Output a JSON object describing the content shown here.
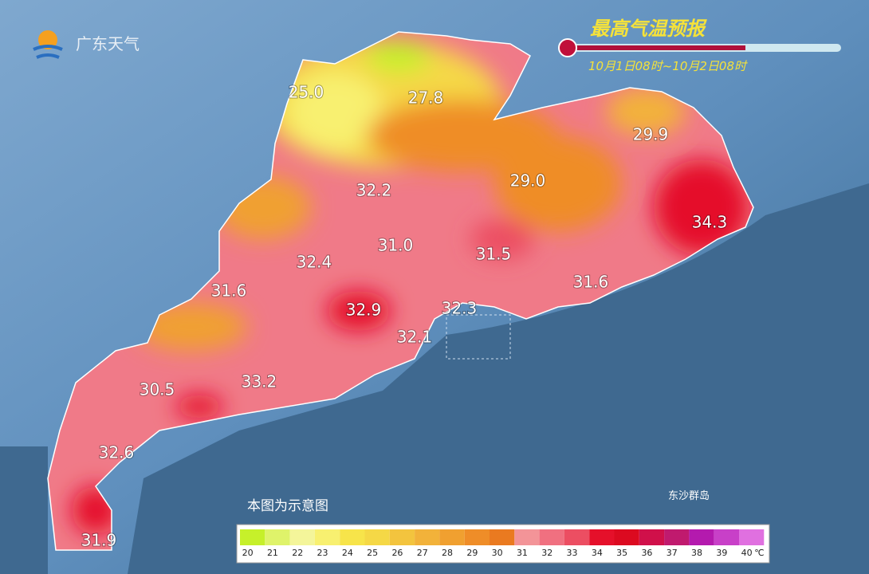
{
  "header": {
    "logo": "广东天气",
    "title": "最高气温预报",
    "subtitle": "10月1日08时~10月2日08时"
  },
  "labels": [
    "25.0",
    "27.8",
    "29.9",
    "32.2",
    "29.0",
    "34.3",
    "31.0",
    "31.5",
    "32.4",
    "31.6",
    "31.6",
    "32.9",
    "32.3",
    "32.1",
    "30.5",
    "33.2",
    "32.6",
    "31.9"
  ],
  "note": "本图为示意图",
  "island": "东沙群岛",
  "legend": {
    "unit": "℃",
    "items": [
      {
        "value": 20,
        "color": "#c6f02a"
      },
      {
        "value": 21,
        "color": "#dff36a"
      },
      {
        "value": 22,
        "color": "#f4f59a"
      },
      {
        "value": 23,
        "color": "#f8f070"
      },
      {
        "value": 24,
        "color": "#f7e44a"
      },
      {
        "value": 25,
        "color": "#f5d846"
      },
      {
        "value": 26,
        "color": "#f3c43e"
      },
      {
        "value": 27,
        "color": "#f2b23a"
      },
      {
        "value": 28,
        "color": "#f0a030"
      },
      {
        "value": 29,
        "color": "#ef8d28"
      },
      {
        "value": 30,
        "color": "#ea7a20"
      },
      {
        "value": 31,
        "color": "#f39498"
      },
      {
        "value": 32,
        "color": "#f07080"
      },
      {
        "value": 33,
        "color": "#ec4e62"
      },
      {
        "value": 34,
        "color": "#e5102a"
      },
      {
        "value": 35,
        "color": "#dc0a20"
      },
      {
        "value": 36,
        "color": "#d0104a"
      },
      {
        "value": 37,
        "color": "#c01a6e"
      },
      {
        "value": 38,
        "color": "#b41aae"
      },
      {
        "value": 39,
        "color": "#c840c8"
      },
      {
        "value": 40,
        "color": "#e070e0"
      }
    ]
  }
}
